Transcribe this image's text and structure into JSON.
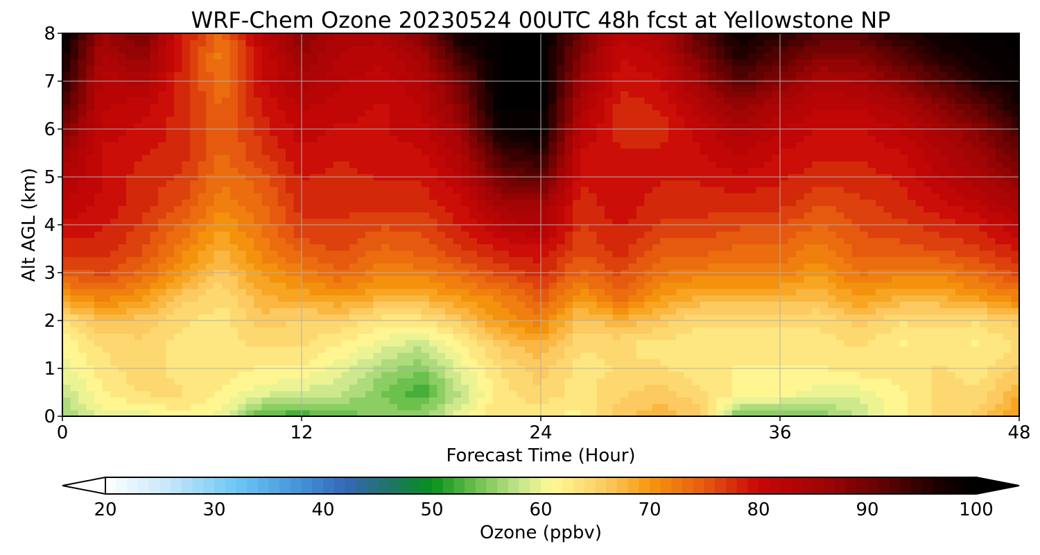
{
  "chart_data": {
    "type": "heatmap",
    "title": "WRF-Chem Ozone  20230524 00UTC 48h fcst at Yellowstone NP",
    "xlabel": "Forecast Time (Hour)",
    "ylabel": "Alt AGL (km)",
    "xlim": [
      0,
      48
    ],
    "ylim": [
      0,
      8
    ],
    "xticks": [
      0,
      12,
      24,
      36,
      48
    ],
    "yticks": [
      0,
      1,
      2,
      3,
      4,
      5,
      6,
      7,
      8
    ],
    "grid": true,
    "x": [
      0,
      2,
      4,
      6,
      8,
      10,
      12,
      14,
      16,
      18,
      20,
      22,
      24,
      26,
      28,
      30,
      32,
      34,
      36,
      38,
      40,
      42,
      44,
      46,
      48
    ],
    "y": [
      0,
      0.5,
      1,
      1.5,
      2,
      2.5,
      3,
      3.5,
      4,
      4.5,
      5,
      5.5,
      6,
      6.5,
      7,
      7.5,
      8
    ],
    "z": [
      [
        56,
        60,
        60,
        62,
        60,
        53,
        52,
        54,
        55,
        56,
        60,
        64,
        62,
        62,
        66,
        68,
        66,
        54,
        54,
        55,
        58,
        62,
        64,
        66,
        70
      ],
      [
        58,
        62,
        64,
        64,
        62,
        60,
        59,
        58,
        55,
        52,
        58,
        63,
        65,
        63,
        65,
        66,
        64,
        62,
        62,
        60,
        60,
        62,
        64,
        64,
        68
      ],
      [
        60,
        63,
        65,
        63,
        63,
        62,
        62,
        60,
        57,
        55,
        60,
        64,
        66,
        63,
        64,
        64,
        63,
        62,
        62,
        62,
        63,
        63,
        64,
        63,
        66
      ],
      [
        61,
        64,
        65,
        63,
        63,
        64,
        64,
        62,
        60,
        58,
        62,
        66,
        68,
        64,
        64,
        63,
        63,
        63,
        63,
        63,
        64,
        62,
        63,
        62,
        64
      ],
      [
        63,
        67,
        66,
        64,
        63,
        66,
        65,
        65,
        63,
        63,
        66,
        70,
        72,
        66,
        68,
        66,
        64,
        64,
        64,
        64,
        66,
        64,
        64,
        64,
        66
      ],
      [
        70,
        72,
        70,
        66,
        64,
        68,
        69,
        70,
        68,
        68,
        70,
        72,
        75,
        70,
        74,
        70,
        68,
        68,
        68,
        67,
        70,
        68,
        68,
        70,
        72
      ],
      [
        75,
        76,
        74,
        70,
        66,
        70,
        72,
        74,
        72,
        72,
        74,
        76,
        78,
        74,
        76,
        73,
        72,
        72,
        72,
        70,
        73,
        72,
        72,
        74,
        76
      ],
      [
        78,
        78,
        76,
        72,
        68,
        72,
        75,
        76,
        74,
        75,
        77,
        79,
        80,
        76,
        78,
        75,
        75,
        74,
        74,
        72,
        75,
        75,
        76,
        77,
        79
      ],
      [
        80,
        79,
        77,
        74,
        70,
        73,
        77,
        77,
        76,
        76,
        79,
        82,
        84,
        77,
        79,
        77,
        77,
        76,
        76,
        74,
        76,
        77,
        78,
        79,
        82
      ],
      [
        82,
        80,
        78,
        76,
        72,
        74,
        78,
        78,
        78,
        78,
        80,
        86,
        86,
        78,
        80,
        78,
        78,
        78,
        78,
        76,
        77,
        78,
        80,
        82,
        85
      ],
      [
        84,
        80,
        78,
        77,
        73,
        75,
        79,
        78,
        79,
        79,
        82,
        90,
        92,
        79,
        80,
        79,
        79,
        80,
        79,
        78,
        78,
        79,
        82,
        84,
        88
      ],
      [
        86,
        80,
        79,
        78,
        74,
        77,
        80,
        79,
        80,
        80,
        84,
        94,
        96,
        80,
        79,
        79,
        80,
        82,
        80,
        79,
        79,
        80,
        83,
        86,
        91
      ],
      [
        89,
        81,
        80,
        78,
        74,
        78,
        81,
        80,
        80,
        81,
        86,
        98,
        99,
        82,
        78,
        78,
        81,
        84,
        82,
        80,
        80,
        82,
        85,
        88,
        94
      ],
      [
        93,
        82,
        81,
        78,
        74,
        79,
        82,
        81,
        80,
        82,
        88,
        100,
        100,
        84,
        78,
        79,
        83,
        87,
        84,
        82,
        82,
        84,
        88,
        92,
        97
      ],
      [
        96,
        82,
        84,
        78,
        73,
        80,
        84,
        82,
        81,
        83,
        90,
        100,
        100,
        86,
        79,
        80,
        86,
        92,
        88,
        84,
        85,
        88,
        92,
        96,
        99
      ],
      [
        98,
        84,
        87,
        78,
        72,
        80,
        86,
        83,
        82,
        85,
        94,
        100,
        100,
        88,
        80,
        82,
        89,
        96,
        92,
        88,
        88,
        92,
        96,
        98,
        100
      ],
      [
        100,
        86,
        90,
        79,
        74,
        82,
        88,
        84,
        84,
        88,
        98,
        100,
        100,
        90,
        82,
        84,
        92,
        98,
        96,
        92,
        92,
        96,
        98,
        100,
        100
      ]
    ],
    "colorbar": {
      "label": "Ozone  (ppbv)",
      "min": 20,
      "max": 100,
      "ticks": [
        20,
        30,
        40,
        50,
        60,
        70,
        80,
        90,
        100
      ],
      "extend": "both",
      "stops": [
        {
          "v": 20,
          "c": "#ffffff"
        },
        {
          "v": 26,
          "c": "#c4e6f8"
        },
        {
          "v": 32,
          "c": "#6cc7f5"
        },
        {
          "v": 38,
          "c": "#4292d8"
        },
        {
          "v": 42,
          "c": "#3668b8"
        },
        {
          "v": 46,
          "c": "#1f7368"
        },
        {
          "v": 50,
          "c": "#07901c"
        },
        {
          "v": 54,
          "c": "#6cc04c"
        },
        {
          "v": 58,
          "c": "#c4e48c"
        },
        {
          "v": 61,
          "c": "#fffa96"
        },
        {
          "v": 66,
          "c": "#fcca60"
        },
        {
          "v": 70,
          "c": "#f6980e"
        },
        {
          "v": 75,
          "c": "#e65a10"
        },
        {
          "v": 80,
          "c": "#c80606"
        },
        {
          "v": 86,
          "c": "#a00404"
        },
        {
          "v": 92,
          "c": "#5a0202"
        },
        {
          "v": 97,
          "c": "#140000"
        },
        {
          "v": 100,
          "c": "#000000"
        }
      ]
    }
  }
}
